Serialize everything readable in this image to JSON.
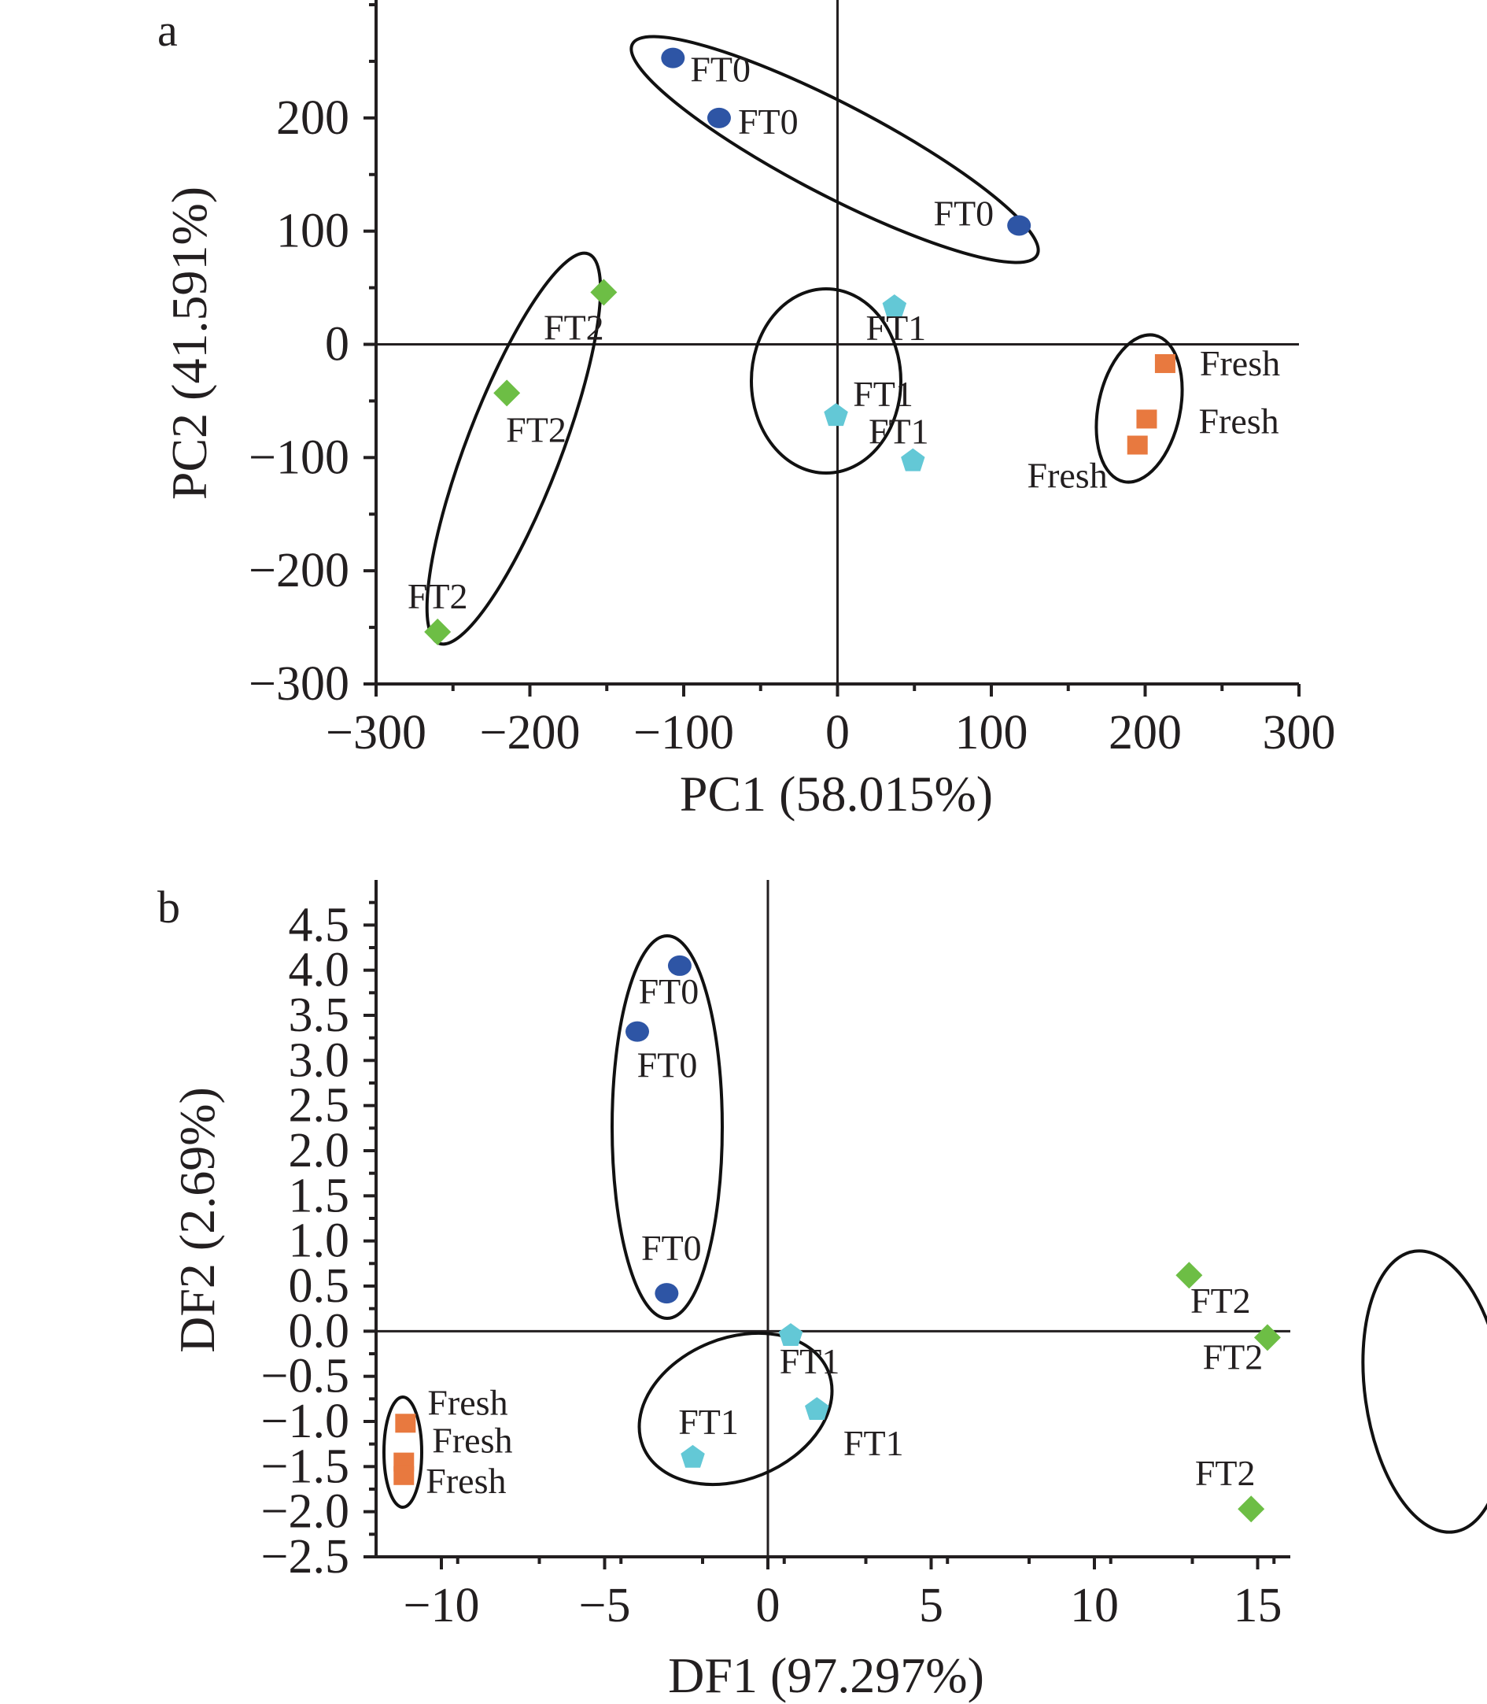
{
  "chart_data": [
    {
      "type": "scatter",
      "panel_label": "a",
      "xlabel": "PC1 (58.015%)",
      "ylabel": "PC2 (41.591%)",
      "xlim": [
        -300,
        300
      ],
      "ylim": [
        -300,
        300
      ],
      "xticks": [
        -300,
        -200,
        -100,
        0,
        100,
        200,
        300
      ],
      "xtick_labels": [
        "−300",
        "−200",
        "−100",
        "0",
        "100",
        "200",
        "300"
      ],
      "yticks": [
        -300,
        -200,
        -100,
        0,
        100,
        200
      ],
      "ytick_labels": [
        "−300",
        "−200",
        "−100",
        "0",
        "100",
        "200"
      ],
      "zero_lines": true,
      "legend": "none",
      "series": [
        {
          "name": "FT0",
          "marker": "circle",
          "color": "#2E55A5",
          "points": [
            {
              "x": -107,
              "y": 253,
              "label": "FT0"
            },
            {
              "x": -77,
              "y": 200,
              "label": "FT0"
            },
            {
              "x": 118,
              "y": 105,
              "label": "FT0"
            }
          ]
        },
        {
          "name": "FT2",
          "marker": "diamond",
          "color": "#6DBE45",
          "points": [
            {
              "x": -152,
              "y": 46,
              "label": "FT2"
            },
            {
              "x": -215,
              "y": -43,
              "label": "FT2"
            },
            {
              "x": -260,
              "y": -254,
              "label": "FT2"
            }
          ]
        },
        {
          "name": "FT1",
          "marker": "pentagon",
          "color": "#63C8D6",
          "points": [
            {
              "x": 37,
              "y": 33,
              "label": "FT1"
            },
            {
              "x": -1,
              "y": -63,
              "label": "FT1"
            },
            {
              "x": 49,
              "y": -103,
              "label": "FT1"
            }
          ]
        },
        {
          "name": "Fresh",
          "marker": "square",
          "color": "#E8793F",
          "points": [
            {
              "x": 213,
              "y": -17,
              "label": "Fresh"
            },
            {
              "x": 201,
              "y": -66,
              "label": "Fresh"
            },
            {
              "x": 195,
              "y": -89,
              "label": "Fresh"
            }
          ]
        }
      ]
    },
    {
      "type": "scatter",
      "panel_label": "b",
      "xlabel": "DF1 (97.297%)",
      "ylabel": "DF2 (2.69%)",
      "xlim": [
        -12,
        16
      ],
      "ylim": [
        -2.5,
        5.0
      ],
      "xticks": [
        -10,
        -5,
        0,
        5,
        10,
        15
      ],
      "xtick_labels": [
        "−10",
        "−5",
        "0",
        "5",
        "10",
        "15"
      ],
      "yticks": [
        -2.5,
        -2.0,
        -1.5,
        -1.0,
        -0.5,
        0.0,
        0.5,
        1.0,
        1.5,
        2.0,
        2.5,
        3.0,
        3.5,
        4.0,
        4.5
      ],
      "ytick_labels": [
        "−2.5",
        "−2.0",
        "−1.5",
        "−1.0",
        "−0.5",
        "0.0",
        "0.5",
        "1.0",
        "1.5",
        "2.0",
        "2.5",
        "3.0",
        "3.5",
        "4.0",
        "4.5"
      ],
      "zero_lines": true,
      "legend": "none",
      "series": [
        {
          "name": "FT0",
          "marker": "circle",
          "color": "#2E55A5",
          "points": [
            {
              "x": -2.7,
              "y": 4.05,
              "label": "FT0"
            },
            {
              "x": -4.0,
              "y": 3.32,
              "label": "FT0"
            },
            {
              "x": -3.1,
              "y": 0.42,
              "label": "FT0"
            }
          ]
        },
        {
          "name": "FT1",
          "marker": "pentagon",
          "color": "#63C8D6",
          "points": [
            {
              "x": 0.7,
              "y": -0.05,
              "label": "FT1"
            },
            {
              "x": 1.5,
              "y": -0.87,
              "label": "FT1"
            },
            {
              "x": -2.3,
              "y": -1.4,
              "label": "FT1"
            }
          ]
        },
        {
          "name": "FT2",
          "marker": "diamond",
          "color": "#6DBE45",
          "points": [
            {
              "x": 12.9,
              "y": 0.62,
              "label": "FT2"
            },
            {
              "x": 15.3,
              "y": -0.07,
              "label": "FT2"
            },
            {
              "x": 14.8,
              "y": -1.97,
              "label": "FT2"
            }
          ]
        },
        {
          "name": "Fresh",
          "marker": "square",
          "color": "#E8793F",
          "points": [
            {
              "x": -11.1,
              "y": -1.02,
              "label": "Fresh"
            },
            {
              "x": -11.15,
              "y": -1.45,
              "label": "Fresh"
            },
            {
              "x": -11.15,
              "y": -1.6,
              "label": "Fresh"
            }
          ]
        }
      ]
    }
  ]
}
